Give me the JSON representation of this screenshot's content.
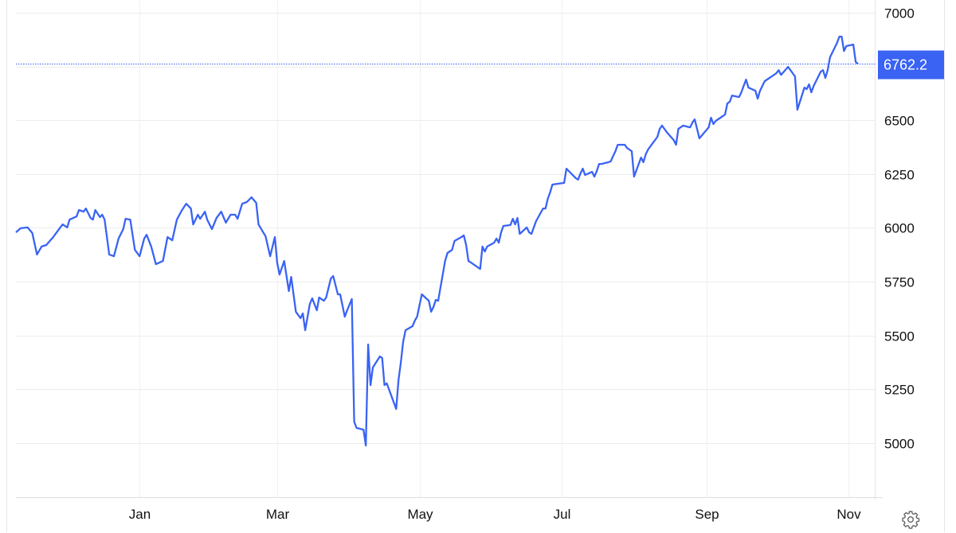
{
  "chart_data": {
    "type": "line",
    "title": "",
    "xlabel": "",
    "ylabel": "",
    "y_axis_side": "right",
    "grid": true,
    "ylim": [
      4748,
      7059
    ],
    "xlim": [
      "2024-11-09",
      "2025-11-05"
    ],
    "yticks": [
      5000,
      5250,
      5500,
      5750,
      6000,
      6250,
      6500,
      6750,
      7000
    ],
    "ytick_labels": [
      "5000",
      "5250",
      "5500",
      "5750",
      "6000",
      "6250",
      "6500",
      "",
      "7000"
    ],
    "xticks": [
      {
        "date": "2025-01-01",
        "label": "Jan"
      },
      {
        "date": "2025-03-01",
        "label": "Mar"
      },
      {
        "date": "2025-05-01",
        "label": "May"
      },
      {
        "date": "2025-07-01",
        "label": "Jul"
      },
      {
        "date": "2025-09-01",
        "label": "Sep"
      },
      {
        "date": "2025-11-01",
        "label": "Nov"
      }
    ],
    "last_value": 6762.2,
    "last_value_label": "6762.2",
    "colors": {
      "line": "#3a63f4",
      "badge": "#3a63f4",
      "grid": "#ececec"
    },
    "x": [
      "2024-11-09",
      "2024-11-11",
      "2024-11-14",
      "2024-11-16",
      "2024-11-18",
      "2024-11-20",
      "2024-11-22",
      "2024-11-25",
      "2024-11-27",
      "2024-11-29",
      "2024-12-01",
      "2024-12-02",
      "2024-12-05",
      "2024-12-06",
      "2024-12-08",
      "2024-12-09",
      "2024-12-11",
      "2024-12-12",
      "2024-12-13",
      "2024-12-15",
      "2024-12-16",
      "2024-12-17",
      "2024-12-19",
      "2024-12-21",
      "2024-12-23",
      "2024-12-25",
      "2024-12-26",
      "2024-12-28",
      "2024-12-30",
      "2025-01-01",
      "2025-01-03",
      "2025-01-04",
      "2025-01-06",
      "2025-01-08",
      "2025-01-11",
      "2025-01-13",
      "2025-01-15",
      "2025-01-17",
      "2025-01-19",
      "2025-01-21",
      "2025-01-23",
      "2025-01-24",
      "2025-01-26",
      "2025-01-27",
      "2025-01-29",
      "2025-01-30",
      "2025-02-01",
      "2025-02-03",
      "2025-02-05",
      "2025-02-07",
      "2025-02-09",
      "2025-02-11",
      "2025-02-12",
      "2025-02-14",
      "2025-02-16",
      "2025-02-18",
      "2025-02-20",
      "2025-02-21",
      "2025-02-23",
      "2025-02-24",
      "2025-02-26",
      "2025-02-28",
      "2025-03-01",
      "2025-03-02",
      "2025-03-04",
      "2025-03-06",
      "2025-03-07",
      "2025-03-09",
      "2025-03-11",
      "2025-03-12",
      "2025-03-13",
      "2025-03-15",
      "2025-03-16",
      "2025-03-18",
      "2025-03-19",
      "2025-03-21",
      "2025-03-22",
      "2025-03-24",
      "2025-03-25",
      "2025-03-27",
      "2025-03-28",
      "2025-03-30",
      "2025-03-31",
      "2025-04-02",
      "2025-04-03",
      "2025-04-04",
      "2025-04-07",
      "2025-04-08",
      "2025-04-09",
      "2025-04-10",
      "2025-04-11",
      "2025-04-14",
      "2025-04-15",
      "2025-04-16",
      "2025-04-17",
      "2025-04-21",
      "2025-04-22",
      "2025-04-23",
      "2025-04-24",
      "2025-04-25",
      "2025-04-28",
      "2025-04-29",
      "2025-04-30",
      "2025-05-01",
      "2025-05-02",
      "2025-05-05",
      "2025-05-06",
      "2025-05-07",
      "2025-05-08",
      "2025-05-09",
      "2025-05-12",
      "2025-05-13",
      "2025-05-15",
      "2025-05-16",
      "2025-05-19",
      "2025-05-20",
      "2025-05-21",
      "2025-05-22",
      "2025-05-23",
      "2025-05-27",
      "2025-05-28",
      "2025-05-29",
      "2025-05-30",
      "2025-06-02",
      "2025-06-03",
      "2025-06-04",
      "2025-06-05",
      "2025-06-06",
      "2025-06-09",
      "2025-06-10",
      "2025-06-11",
      "2025-06-12",
      "2025-06-13",
      "2025-06-16",
      "2025-06-17",
      "2025-06-18",
      "2025-06-20",
      "2025-06-23",
      "2025-06-24",
      "2025-06-25",
      "2025-06-26",
      "2025-06-27",
      "2025-07-02",
      "2025-07-03",
      "2025-07-07",
      "2025-07-08",
      "2025-07-09",
      "2025-07-10",
      "2025-07-11",
      "2025-07-14",
      "2025-07-15",
      "2025-07-16",
      "2025-07-17",
      "2025-07-18",
      "2025-07-21",
      "2025-07-22",
      "2025-07-23",
      "2025-07-24",
      "2025-07-25",
      "2025-07-28",
      "2025-07-29",
      "2025-07-31",
      "2025-08-01",
      "2025-08-04",
      "2025-08-05",
      "2025-08-06",
      "2025-08-07",
      "2025-08-08",
      "2025-08-11",
      "2025-08-12",
      "2025-08-13",
      "2025-08-14",
      "2025-08-15",
      "2025-08-18",
      "2025-08-19",
      "2025-08-20",
      "2025-08-22",
      "2025-08-25",
      "2025-08-26",
      "2025-08-27",
      "2025-08-28",
      "2025-08-29",
      "2025-09-02",
      "2025-09-03",
      "2025-09-04",
      "2025-09-05",
      "2025-09-08",
      "2025-09-09",
      "2025-09-10",
      "2025-09-11",
      "2025-09-12",
      "2025-09-15",
      "2025-09-16",
      "2025-09-17",
      "2025-09-18",
      "2025-09-19",
      "2025-09-22",
      "2025-09-23",
      "2025-09-24",
      "2025-09-25",
      "2025-09-26",
      "2025-09-30",
      "2025-10-01",
      "2025-10-02",
      "2025-10-03",
      "2025-10-06",
      "2025-10-09",
      "2025-10-10",
      "2025-10-13",
      "2025-10-14",
      "2025-10-15",
      "2025-10-16",
      "2025-10-17",
      "2025-10-20",
      "2025-10-21",
      "2025-10-22",
      "2025-10-23",
      "2025-10-24",
      "2025-10-27",
      "2025-10-28",
      "2025-10-29",
      "2025-10-30",
      "2025-10-31",
      "2025-11-03",
      "2025-11-04",
      "2025-11-05"
    ],
    "values": [
      5979,
      5998,
      6002,
      5976,
      5876,
      5913,
      5920,
      5957,
      5987,
      6016,
      6002,
      6038,
      6053,
      6083,
      6075,
      6090,
      6046,
      6038,
      6083,
      6050,
      6061,
      6038,
      5876,
      5868,
      5950,
      5994,
      6042,
      6038,
      5898,
      5868,
      5950,
      5968,
      5913,
      5831,
      5846,
      5957,
      5942,
      6038,
      6079,
      6112,
      6090,
      6016,
      6061,
      6042,
      6075,
      6038,
      5994,
      6046,
      6075,
      6024,
      6061,
      6061,
      6042,
      6112,
      6120,
      6142,
      6116,
      6016,
      5979,
      5961,
      5868,
      5957,
      5839,
      5783,
      5846,
      5706,
      5772,
      5610,
      5580,
      5602,
      5524,
      5646,
      5672,
      5617,
      5676,
      5661,
      5676,
      5765,
      5776,
      5691,
      5691,
      5587,
      5617,
      5669,
      5099,
      5070,
      5062,
      4988,
      5458,
      5269,
      5351,
      5402,
      5395,
      5269,
      5277,
      5158,
      5292,
      5373,
      5469,
      5524,
      5543,
      5569,
      5587,
      5639,
      5691,
      5661,
      5610,
      5632,
      5665,
      5661,
      5846,
      5883,
      5898,
      5939,
      5957,
      5965,
      5920,
      5846,
      5839,
      5809,
      5913,
      5890,
      5913,
      5931,
      5950,
      5931,
      5979,
      6009,
      6013,
      6042,
      6016,
      6046,
      5972,
      6002,
      5979,
      5972,
      6031,
      6090,
      6090,
      6135,
      6164,
      6201,
      6209,
      6275,
      6231,
      6224,
      6253,
      6275,
      6246,
      6260,
      6238,
      6264,
      6297,
      6297,
      6305,
      6309,
      6334,
      6356,
      6386,
      6386,
      6371,
      6356,
      6238,
      6327,
      6305,
      6342,
      6364,
      6379,
      6423,
      6460,
      6475,
      6460,
      6445,
      6408,
      6386,
      6460,
      6475,
      6467,
      6489,
      6504,
      6460,
      6416,
      6467,
      6512,
      6482,
      6497,
      6519,
      6527,
      6578,
      6586,
      6615,
      6608,
      6630,
      6660,
      6689,
      6652,
      6637,
      6600,
      6637,
      6660,
      6682,
      6711,
      6719,
      6733,
      6711,
      6748,
      6704,
      6549,
      6652,
      6645,
      6667,
      6630,
      6660,
      6726,
      6733,
      6697,
      6733,
      6793,
      6859,
      6889,
      6889,
      6822,
      6845,
      6852,
      6771,
      6762.2
    ]
  },
  "controls": {
    "settings_icon": "gear-icon"
  }
}
